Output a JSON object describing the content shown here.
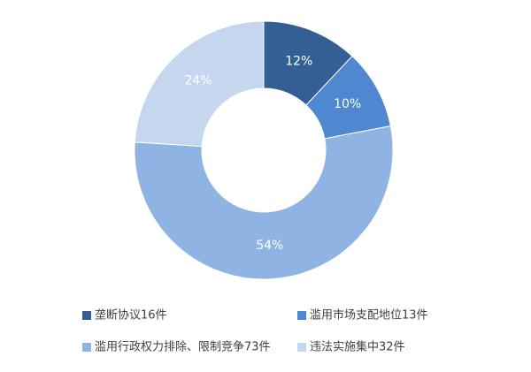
{
  "chart_data": {
    "type": "donut",
    "categories": [
      "垄断协议16件",
      "滥用市场支配地位13件",
      "滥用行政权力排除、限制竞争73件",
      "违法实施集中32件"
    ],
    "values": [
      12,
      10,
      54,
      24
    ],
    "value_labels": [
      "12%",
      "10%",
      "54%",
      "24%"
    ],
    "colors": [
      "#335f94",
      "#4f88d1",
      "#8fb3e2",
      "#c5d7ef"
    ],
    "legend": "bottom"
  }
}
